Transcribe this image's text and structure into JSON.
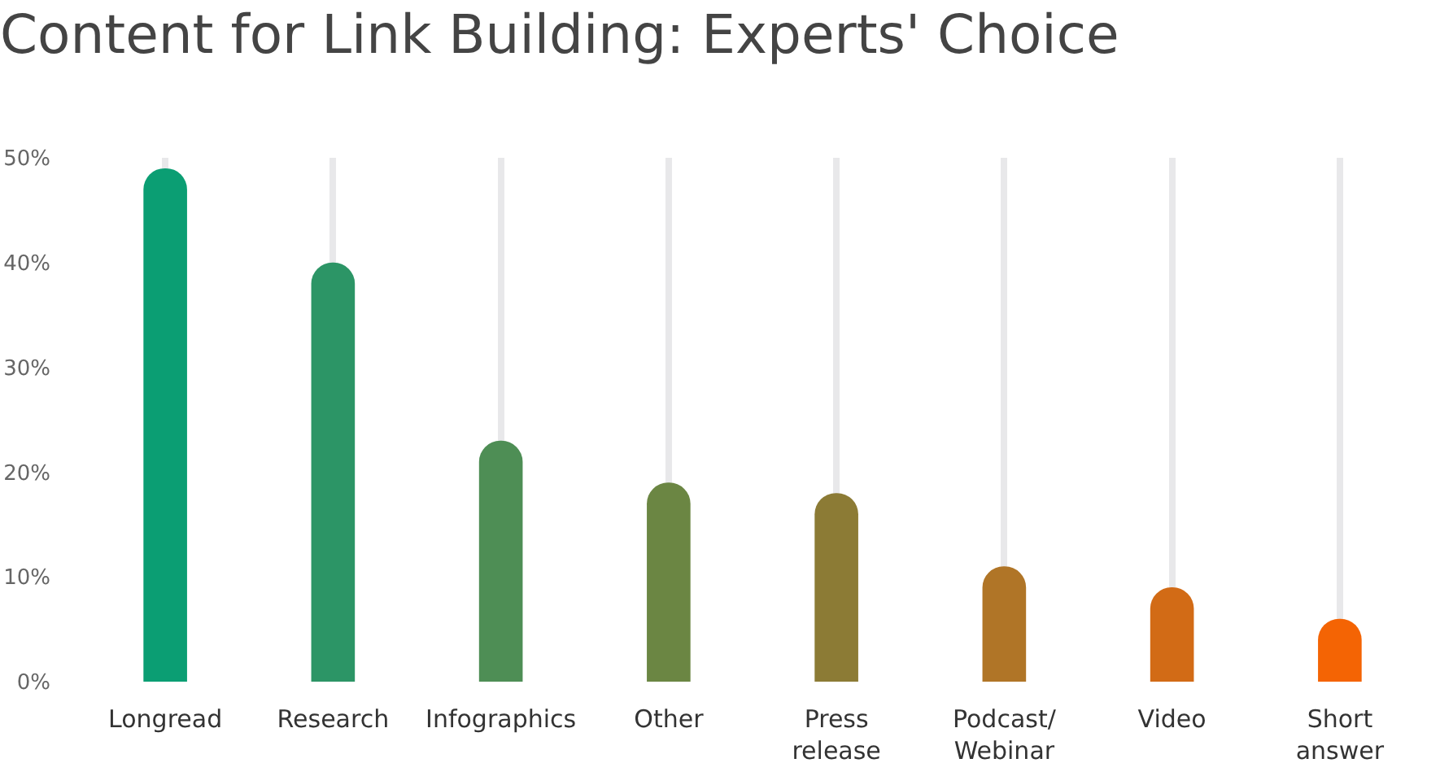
{
  "chart_data": {
    "type": "bar",
    "title": "Content for Link Building: Experts' Choice",
    "categories": [
      "Longread",
      "Research",
      "Infographics",
      "Other",
      "Press\nrelease",
      "Podcast/\nWebinar",
      "Video",
      "Short\nanswer"
    ],
    "values": [
      49,
      40,
      23,
      19,
      18,
      11,
      9,
      6
    ],
    "colors": [
      "#0b9e73",
      "#2c9566",
      "#4e8e55",
      "#6b8643",
      "#8c7b35",
      "#b07527",
      "#d26b16",
      "#f46404"
    ],
    "ylim": [
      0,
      50
    ],
    "yticks": [
      {
        "value": 0,
        "label": "0%"
      },
      {
        "value": 10,
        "label": "10%"
      },
      {
        "value": 20,
        "label": "20%"
      },
      {
        "value": 30,
        "label": "30%"
      },
      {
        "value": 40,
        "label": "40%"
      },
      {
        "value": 50,
        "label": "50%"
      }
    ],
    "grid": "x"
  }
}
